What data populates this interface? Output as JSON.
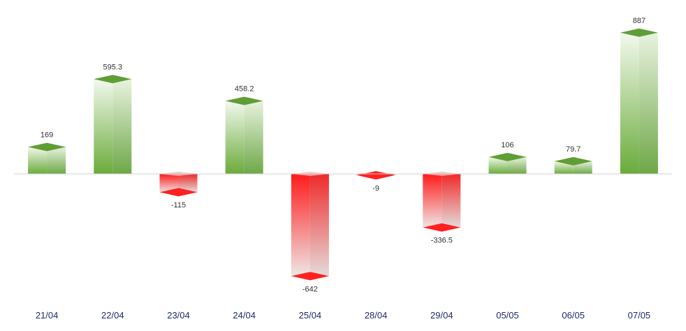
{
  "chart_data": {
    "type": "bar",
    "categories": [
      "21/04",
      "22/04",
      "23/04",
      "24/04",
      "25/04",
      "28/04",
      "29/04",
      "05/05",
      "06/05",
      "07/05"
    ],
    "values": [
      169,
      595.3,
      -115,
      458.2,
      -642,
      -9,
      -336.5,
      106,
      79.7,
      887
    ],
    "value_labels": [
      "169",
      "595.3",
      "-115",
      "458.2",
      "-642",
      "-9",
      "-336.5",
      "106",
      "79.7",
      "887"
    ],
    "ylim": [
      -700,
      950
    ],
    "grid": false,
    "colors": {
      "positive_dark": "#6aab3a",
      "positive_light": "#f2f8ec",
      "negative_dark": "#ff1a1a",
      "negative_light": "#f4e6e6",
      "baseline": "#d0d0d0",
      "axis_label": "#1f2a6b"
    }
  }
}
